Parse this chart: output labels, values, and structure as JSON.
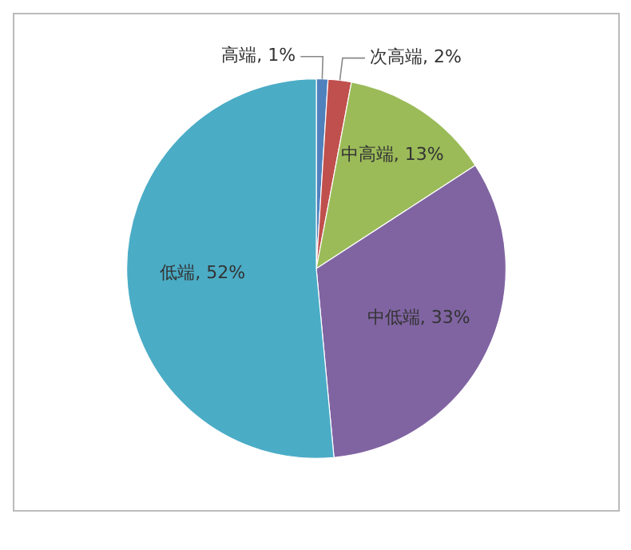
{
  "chart_data": {
    "type": "pie",
    "categories": [
      "高端",
      "次高端",
      "中高端",
      "中低端",
      "低端"
    ],
    "values": [
      1,
      2,
      13,
      33,
      52
    ],
    "colors": [
      "#4f81bd",
      "#c0504d",
      "#9bbb59",
      "#8064a2",
      "#4bacc6"
    ],
    "value_labels": [
      "1%",
      "2%",
      "13%",
      "33%",
      "52%"
    ],
    "legend": false
  }
}
